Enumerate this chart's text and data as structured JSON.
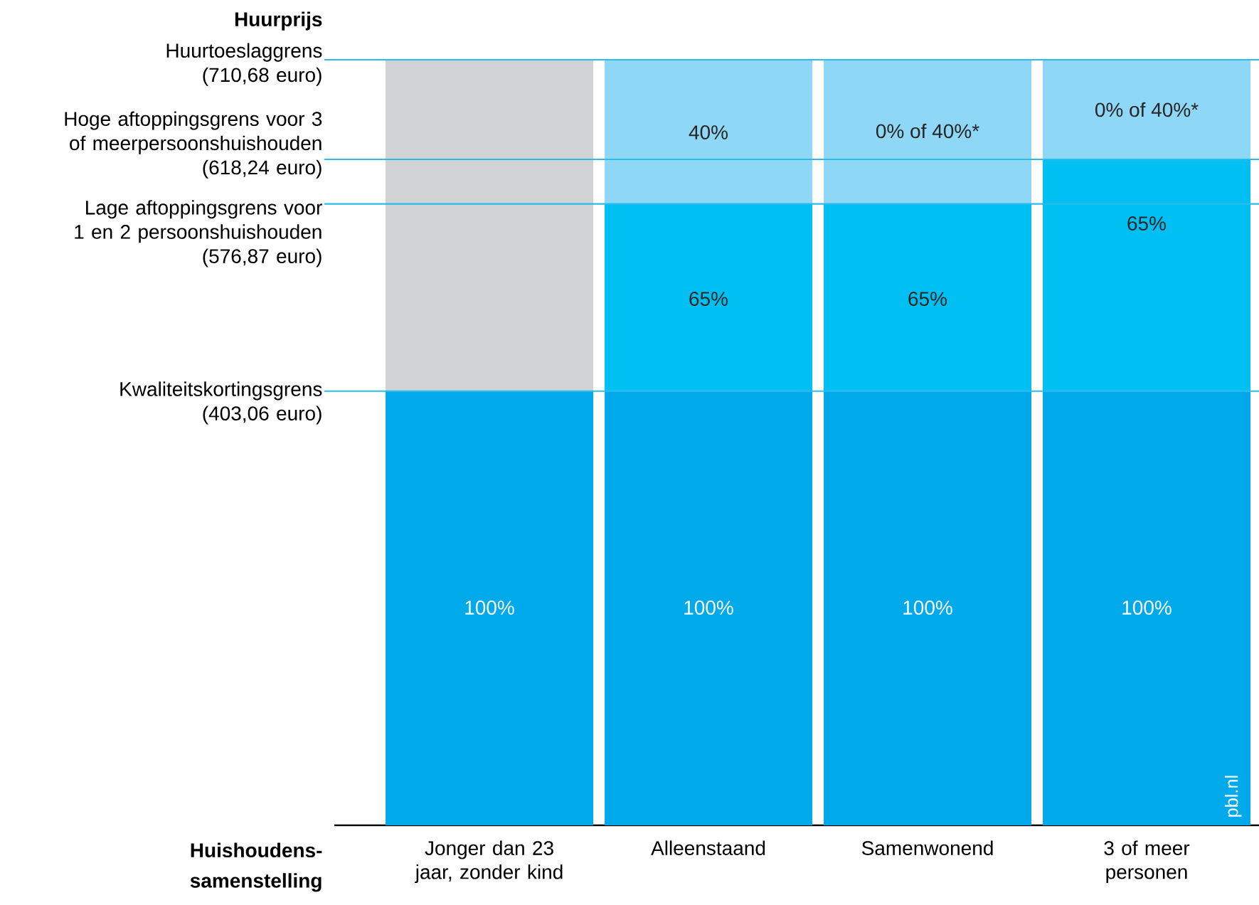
{
  "chart_data": {
    "type": "bar",
    "stacked": true,
    "ylabel": "Huurprijs",
    "xlabel": "Huishoudens-samenstelling",
    "categories": [
      "Jonger dan 23 jaar, zonder kind",
      "Alleenstaand",
      "Samenwonend",
      "3 of meer personen"
    ],
    "series": [
      {
        "colors": [
          "#00aaea",
          "#00aaea",
          "#00aaea",
          "#00aaea"
        ],
        "values": [
          403.06,
          403.06,
          403.06,
          403.06
        ]
      },
      {
        "colors": [
          "#d1d2d4",
          "#00bff2",
          "#00bff2",
          "#00bff2"
        ],
        "values": [
          307.62,
          173.81,
          173.81,
          215.18
        ]
      },
      {
        "colors": [
          null,
          "#8fd7f7",
          "#8fd7f7",
          "#8fd7f7"
        ],
        "values": [
          null,
          133.81,
          133.81,
          92.44
        ]
      }
    ],
    "ylim": [
      0,
      710.68
    ],
    "tick_labels": "x",
    "ref_lines": [
      {
        "axis": "y",
        "value": 710.68,
        "label": "Huurtoeslaggrens (710,68 euro)",
        "color": "#2bbbec"
      },
      {
        "axis": "y",
        "value": 618.24,
        "label": "Hoge aftoppingsgrens voor 3 of meerpersoonshuishouden (618,24 euro)",
        "color": "#2bbbec"
      },
      {
        "axis": "y",
        "value": 576.87,
        "label": "Lage aftoppingsgrens voor 1 en 2 persoonshuishouden (576,87 euro)",
        "color": "#2bbbec"
      },
      {
        "axis": "y",
        "value": 403.06,
        "label": "Kwaliteitskortingsgrens (403,06 euro)",
        "color": "#2bbbec"
      }
    ],
    "annotations": [
      "100%",
      "100%",
      "100%",
      "100%",
      "65%",
      "65%",
      "65%",
      "40%",
      "0% of 40%*",
      "0% of 40%*",
      "pbl.nl"
    ]
  }
}
